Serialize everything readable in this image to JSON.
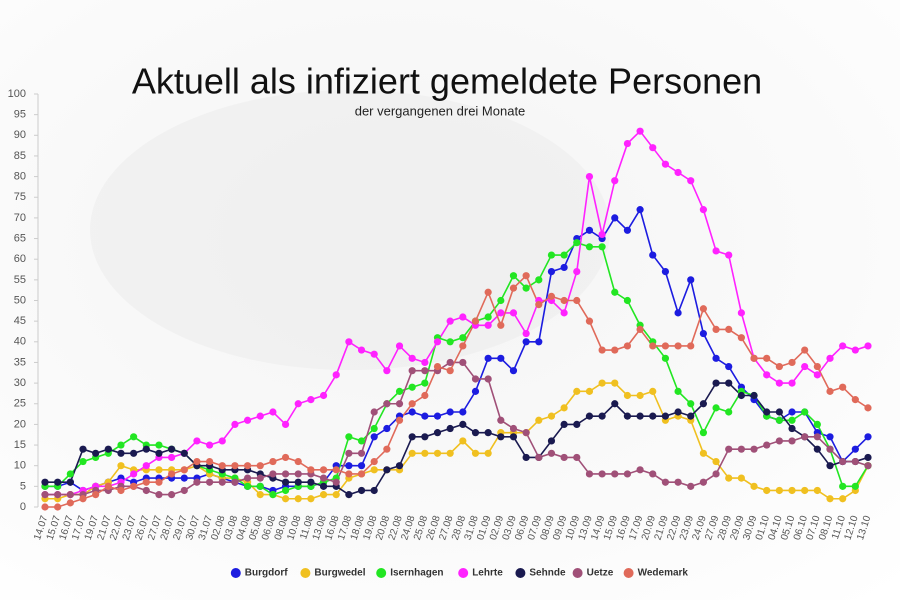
{
  "chart_data": {
    "type": "line",
    "title": "Aktuell als infiziert gemeldete Personen",
    "subtitle": "der vergangenen drei Monate",
    "categories": [
      "14.07",
      "15.07",
      "16.07",
      "17.07",
      "19.07",
      "21.07",
      "22.07",
      "23.07",
      "26.07",
      "27.07",
      "28.07",
      "29.07",
      "30.07",
      "31.07",
      "02.08",
      "03.08",
      "04.08",
      "05.08",
      "06.08",
      "08.08",
      "10.08",
      "11.08",
      "13.08",
      "16.08",
      "17.08",
      "18.08",
      "19.08",
      "20.08",
      "22.08",
      "24.08",
      "25.08",
      "26.08",
      "27.08",
      "28.08",
      "31.08",
      "01.09",
      "02.09",
      "03.09",
      "06.09",
      "07.09",
      "08.09",
      "09.09",
      "10.09",
      "13.09",
      "14.09",
      "15.09",
      "16.09",
      "17.09",
      "20.09",
      "21.09",
      "22.09",
      "23.09",
      "24.09",
      "27.09",
      "28.09",
      "29.09",
      "30.09",
      "01.10",
      "04.10",
      "05.10",
      "06.10",
      "07.10",
      "08.10",
      "11.10",
      "12.10",
      "13.10"
    ],
    "series": [
      {
        "name": "Burgdorf",
        "color": "#1c1ce0",
        "values": [
          5,
          5,
          6,
          4,
          5,
          6,
          7,
          6,
          7,
          7,
          7,
          7,
          7,
          8,
          7,
          6,
          5,
          5,
          4,
          5,
          5,
          5,
          6,
          10,
          10,
          10,
          17,
          19,
          22,
          23,
          22,
          22,
          23,
          23,
          28,
          36,
          36,
          33,
          40,
          40,
          57,
          58,
          65,
          67,
          65,
          70,
          67,
          72,
          61,
          57,
          47,
          55,
          42,
          36,
          34,
          29,
          26,
          22,
          21,
          23,
          23,
          18,
          17,
          11,
          14,
          17
        ]
      },
      {
        "name": "Burgwedel",
        "color": "#f0c020",
        "values": [
          2,
          2,
          3,
          3,
          5,
          6,
          10,
          9,
          9,
          9,
          9,
          9,
          10,
          8,
          7,
          7,
          6,
          3,
          3,
          2,
          2,
          2,
          3,
          3,
          7,
          8,
          9,
          9,
          9,
          13,
          13,
          13,
          13,
          16,
          13,
          13,
          18,
          18,
          18,
          21,
          22,
          24,
          28,
          28,
          30,
          30,
          27,
          27,
          28,
          21,
          22,
          21,
          13,
          11,
          7,
          7,
          5,
          4,
          4,
          4,
          4,
          4,
          2,
          2,
          4,
          10
        ]
      },
      {
        "name": "Isernhagen",
        "color": "#22e622",
        "values": [
          5,
          5,
          8,
          11,
          12,
          13,
          15,
          17,
          15,
          15,
          14,
          13,
          10,
          9,
          8,
          7,
          5,
          5,
          3,
          4,
          5,
          5,
          6,
          7,
          17,
          16,
          19,
          25,
          28,
          29,
          30,
          41,
          40,
          41,
          45,
          46,
          50,
          56,
          53,
          55,
          61,
          61,
          64,
          63,
          63,
          52,
          50,
          44,
          40,
          36,
          28,
          25,
          18,
          24,
          23,
          28,
          27,
          22,
          21,
          21,
          23,
          20,
          14,
          5,
          5,
          10
        ]
      },
      {
        "name": "Lehrte",
        "color": "#ff22ff",
        "values": [
          3,
          3,
          3,
          4,
          5,
          5,
          6,
          8,
          10,
          12,
          12,
          13,
          16,
          15,
          16,
          20,
          21,
          22,
          23,
          20,
          25,
          26,
          27,
          32,
          40,
          38,
          37,
          33,
          39,
          36,
          35,
          40,
          45,
          46,
          44,
          44,
          47,
          47,
          42,
          50,
          50,
          47,
          57,
          80,
          66,
          79,
          88,
          91,
          87,
          83,
          81,
          79,
          72,
          62,
          61,
          47,
          36,
          32,
          30,
          30,
          34,
          32,
          36,
          39,
          38,
          39
        ]
      },
      {
        "name": "Sehnde",
        "color": "#1a1a50",
        "values": [
          6,
          6,
          6,
          14,
          13,
          14,
          13,
          13,
          14,
          13,
          14,
          13,
          10,
          10,
          9,
          9,
          9,
          8,
          7,
          6,
          6,
          6,
          5,
          5,
          3,
          4,
          4,
          9,
          10,
          17,
          17,
          18,
          19,
          20,
          18,
          18,
          17,
          17,
          12,
          12,
          16,
          20,
          20,
          22,
          22,
          25,
          22,
          22,
          22,
          22,
          23,
          22,
          25,
          30,
          30,
          27,
          27,
          23,
          23,
          19,
          17,
          14,
          10,
          11,
          11,
          12
        ]
      },
      {
        "name": "Uetze",
        "color": "#a05078",
        "values": [
          3,
          3,
          3,
          3,
          4,
          4,
          5,
          5,
          4,
          3,
          3,
          4,
          6,
          6,
          6,
          6,
          7,
          7,
          8,
          8,
          8,
          8,
          7,
          6,
          13,
          13,
          23,
          25,
          25,
          33,
          33,
          33,
          35,
          35,
          31,
          31,
          21,
          19,
          18,
          12,
          13,
          12,
          12,
          8,
          8,
          8,
          8,
          9,
          8,
          6,
          6,
          5,
          6,
          8,
          14,
          14,
          14,
          15,
          16,
          16,
          17,
          17,
          14,
          11,
          11,
          10
        ]
      },
      {
        "name": "Wedemark",
        "color": "#e06a5a",
        "values": [
          0,
          0,
          1,
          2,
          3,
          5,
          4,
          5,
          6,
          6,
          8,
          9,
          11,
          11,
          10,
          10,
          10,
          10,
          11,
          12,
          11,
          9,
          9,
          9,
          8,
          8,
          11,
          14,
          21,
          25,
          27,
          34,
          33,
          39,
          45,
          52,
          44,
          53,
          56,
          49,
          51,
          50,
          50,
          45,
          38,
          38,
          39,
          43,
          39,
          39,
          39,
          39,
          48,
          43,
          43,
          41,
          36,
          36,
          34,
          35,
          38,
          34,
          28,
          29,
          26,
          24
        ]
      }
    ],
    "ylim": [
      0,
      100
    ],
    "yticks": [
      0,
      5,
      10,
      15,
      20,
      25,
      30,
      35,
      40,
      45,
      50,
      55,
      60,
      65,
      70,
      75,
      80,
      85,
      90,
      95,
      100
    ],
    "grid": false,
    "legend": "bottom"
  }
}
